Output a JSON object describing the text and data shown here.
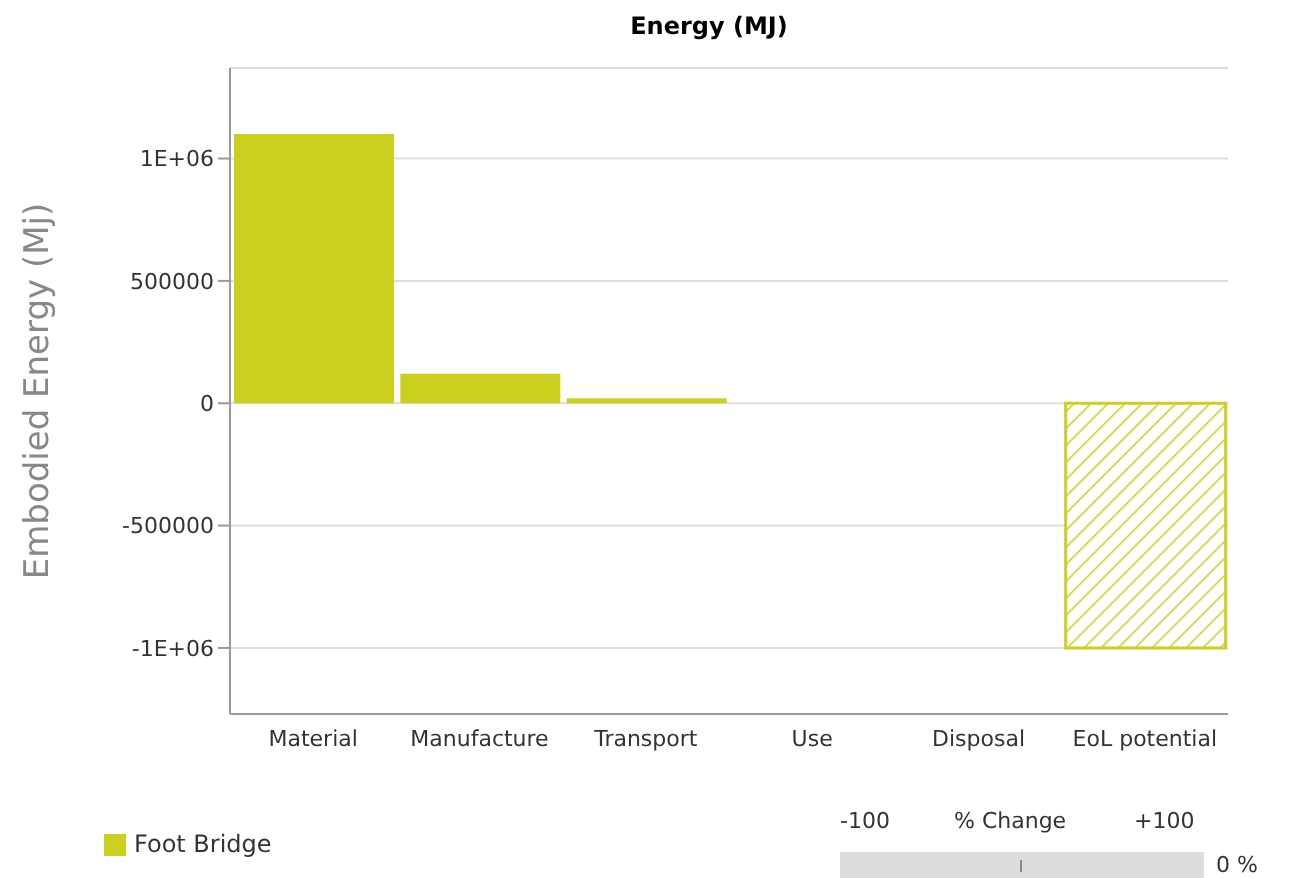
{
  "chart_data": {
    "type": "bar",
    "title": "Energy (MJ)",
    "ylabel": "Embodied Energy (Mj)",
    "categories": [
      "Material",
      "Manufacture",
      "Transport",
      "Use",
      "Disposal",
      "EoL potential"
    ],
    "series": [
      {
        "name": "Foot Bridge",
        "color": "#cccf1e",
        "values": [
          1100000,
          120000,
          20000,
          0,
          0,
          -1000000
        ]
      }
    ],
    "ylim": [
      -1270000,
      1370000
    ],
    "yticks": [
      {
        "value": -1000000,
        "label": "-1E+06"
      },
      -500000,
      0,
      500000,
      {
        "value": 1000000,
        "label": "1E+06"
      }
    ],
    "grid": "y",
    "legend": "bottom left",
    "annotations": [
      "-100",
      "% Change",
      "+100",
      "0 %"
    ]
  }
}
